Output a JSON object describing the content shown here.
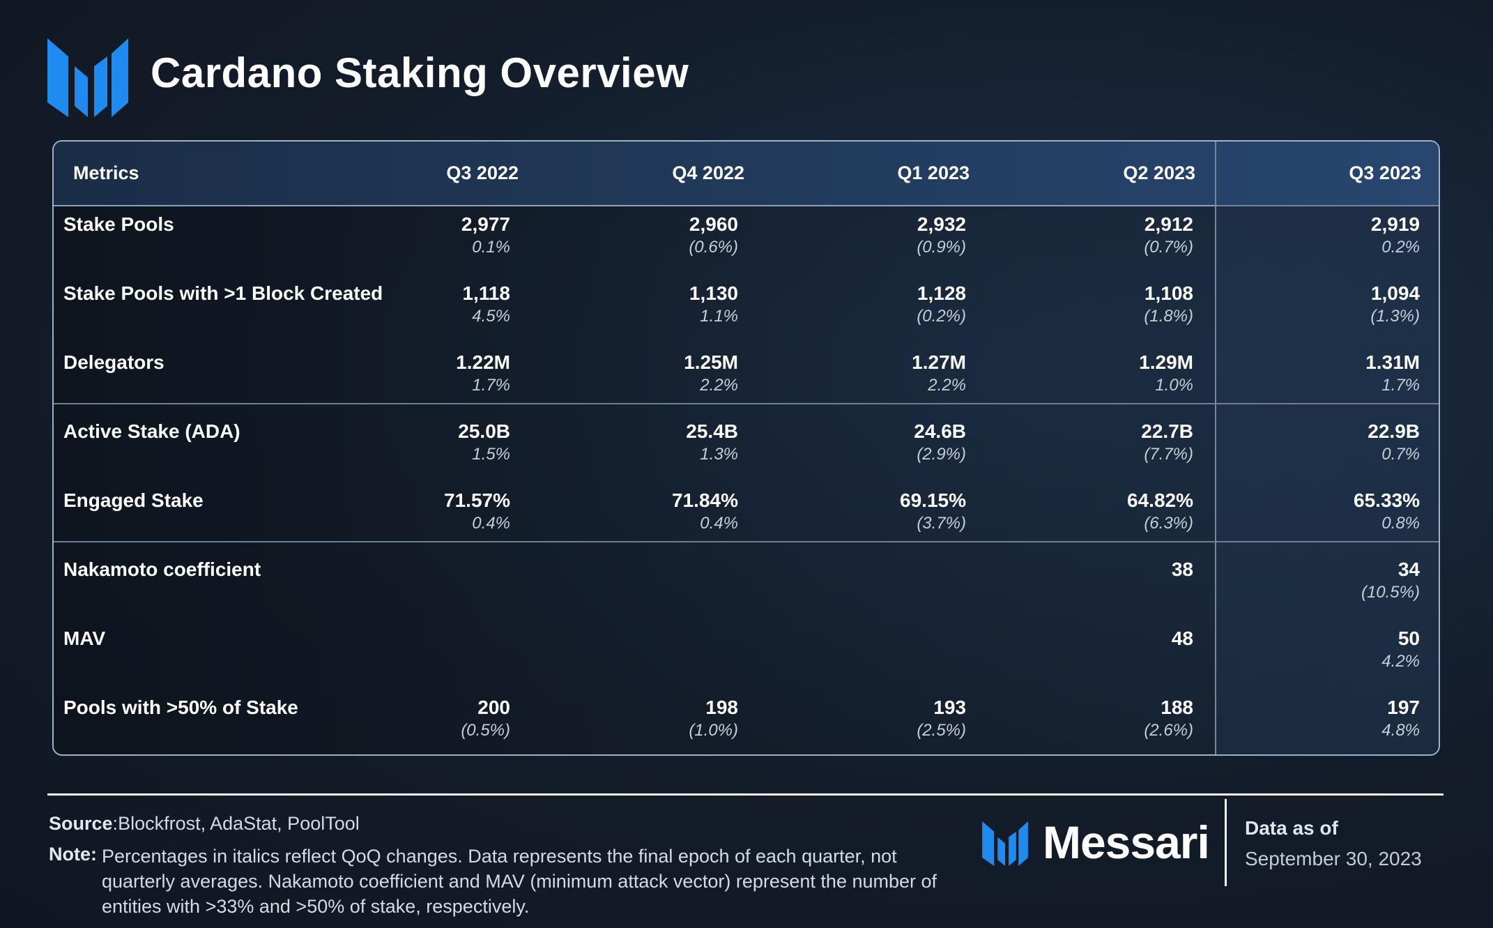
{
  "title": "Cardano Staking Overview",
  "colors": {
    "brand_blue": "#1f8bf0",
    "header_bg": "#213a5a",
    "border": "#9fb1c6"
  },
  "table": {
    "headers": [
      "Metrics",
      "Q3 2022",
      "Q4 2022",
      "Q1 2023",
      "Q2 2023",
      "Q3 2023"
    ],
    "rows": [
      {
        "label": "Stake Pools",
        "cells": [
          {
            "value": "2,977",
            "change": "0.1%"
          },
          {
            "value": "2,960",
            "change": "(0.6%)"
          },
          {
            "value": "2,932",
            "change": "(0.9%)"
          },
          {
            "value": "2,912",
            "change": "(0.7%)"
          },
          {
            "value": "2,919",
            "change": "0.2%"
          }
        ]
      },
      {
        "label": "Stake Pools with >1 Block Created",
        "cells": [
          {
            "value": "1,118",
            "change": "4.5%"
          },
          {
            "value": "1,130",
            "change": "1.1%"
          },
          {
            "value": "1,128",
            "change": "(0.2%)"
          },
          {
            "value": "1,108",
            "change": "(1.8%)"
          },
          {
            "value": "1,094",
            "change": "(1.3%)"
          }
        ]
      },
      {
        "label": "Delegators",
        "cells": [
          {
            "value": "1.22M",
            "change": "1.7%"
          },
          {
            "value": "1.25M",
            "change": "2.2%"
          },
          {
            "value": "1.27M",
            "change": "2.2%"
          },
          {
            "value": "1.29M",
            "change": "1.0%"
          },
          {
            "value": "1.31M",
            "change": "1.7%"
          }
        ]
      },
      {
        "label": "Active Stake (ADA)",
        "cells": [
          {
            "value": "25.0B",
            "change": "1.5%"
          },
          {
            "value": "25.4B",
            "change": "1.3%"
          },
          {
            "value": "24.6B",
            "change": "(2.9%)"
          },
          {
            "value": "22.7B",
            "change": "(7.7%)"
          },
          {
            "value": "22.9B",
            "change": "0.7%"
          }
        ]
      },
      {
        "label": "Engaged Stake",
        "cells": [
          {
            "value": "71.57%",
            "change": "0.4%"
          },
          {
            "value": "71.84%",
            "change": "0.4%"
          },
          {
            "value": "69.15%",
            "change": "(3.7%)"
          },
          {
            "value": "64.82%",
            "change": "(6.3%)"
          },
          {
            "value": "65.33%",
            "change": "0.8%"
          }
        ]
      },
      {
        "label": "Nakamoto coefficient",
        "cells": [
          {
            "value": "",
            "change": ""
          },
          {
            "value": "",
            "change": ""
          },
          {
            "value": "",
            "change": ""
          },
          {
            "value": "38",
            "change": ""
          },
          {
            "value": "34",
            "change": "(10.5%)"
          }
        ]
      },
      {
        "label": "MAV",
        "cells": [
          {
            "value": "",
            "change": ""
          },
          {
            "value": "",
            "change": ""
          },
          {
            "value": "",
            "change": ""
          },
          {
            "value": "48",
            "change": ""
          },
          {
            "value": "50",
            "change": "4.2%"
          }
        ]
      },
      {
        "label": "Pools with >50% of Stake",
        "cells": [
          {
            "value": "200",
            "change": "(0.5%)"
          },
          {
            "value": "198",
            "change": "(1.0%)"
          },
          {
            "value": "193",
            "change": "(2.5%)"
          },
          {
            "value": "188",
            "change": "(2.6%)"
          },
          {
            "value": "197",
            "change": "4.8%"
          }
        ]
      }
    ]
  },
  "footer": {
    "source_label": "Source",
    "source_text": "Blockfrost, AdaStat, PoolTool",
    "note_label": "Note",
    "note_text": "Percentages in italics reflect QoQ changes. Data represents the final epoch of each quarter, not quarterly averages. Nakamoto coefficient and MAV (minimum attack vector) represent the number of entities with >33% and >50% of stake, respectively.",
    "brand": "Messari",
    "data_as_of_label": "Data as of",
    "data_as_of_date": "September 30, 2023"
  }
}
